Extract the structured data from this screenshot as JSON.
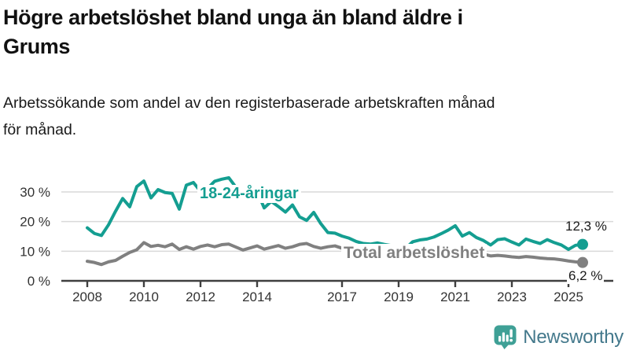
{
  "header": {
    "title_line1": "Högre arbetslöshet bland unga än bland äldre i",
    "title_line2": "Grums",
    "subtitle_line1": "Arbetssökande som andel av den registerbaserade arbetskraften månad",
    "subtitle_line2": "för månad."
  },
  "chart_data": {
    "type": "line",
    "title": "Högre arbetslöshet bland unga än bland äldre i Grums",
    "subtitle": "Arbetssökande som andel av den registerbaserade arbetskraften månad för månad.",
    "unit": "%",
    "grid": "horizontal-only",
    "legend_position": "inline-labels",
    "ylim": [
      0,
      36
    ],
    "xlim": [
      2008,
      2025.5
    ],
    "x_ticks": [
      2008,
      2010,
      2012,
      2014,
      2017,
      2019,
      2021,
      2023,
      2025
    ],
    "y_ticks": [
      {
        "value": 0,
        "label": "0 %"
      },
      {
        "value": 10,
        "label": "10 %"
      },
      {
        "value": 20,
        "label": "20 %"
      },
      {
        "value": 30,
        "label": "30 %"
      }
    ],
    "axis_color": "#3f3f3f",
    "grid_color": "#d9d9d9",
    "tick_text_color": "#333333",
    "x": [
      2008,
      2008.25,
      2008.5,
      2008.75,
      2009,
      2009.25,
      2009.5,
      2009.75,
      2010,
      2010.25,
      2010.5,
      2010.75,
      2011,
      2011.25,
      2011.5,
      2011.75,
      2012,
      2012.25,
      2012.5,
      2012.75,
      2013,
      2013.25,
      2013.5,
      2013.75,
      2014,
      2014.25,
      2014.5,
      2014.75,
      2015,
      2015.25,
      2015.5,
      2015.75,
      2016,
      2016.25,
      2016.5,
      2016.75,
      2017,
      2017.25,
      2017.5,
      2017.75,
      2018,
      2018.25,
      2018.5,
      2018.75,
      2019,
      2019.25,
      2019.5,
      2019.75,
      2020,
      2020.25,
      2020.5,
      2020.75,
      2021,
      2021.25,
      2021.5,
      2021.75,
      2022,
      2022.25,
      2022.5,
      2022.75,
      2023,
      2023.25,
      2023.5,
      2023.75,
      2024,
      2024.25,
      2024.5,
      2024.75,
      2025,
      2025.25,
      2025.5
    ],
    "series": [
      {
        "name": "18-24-åringar",
        "color": "#149E91",
        "end_value": 12.3,
        "end_label": "12,3 %",
        "values": [
          17.9,
          16.0,
          15.3,
          18.9,
          23.5,
          27.8,
          25.0,
          31.8,
          33.7,
          28.0,
          30.8,
          29.8,
          29.5,
          24.2,
          32.3,
          33.2,
          30.2,
          31.2,
          33.6,
          34.3,
          34.8,
          31.6,
          29.4,
          30.8,
          30.2,
          24.6,
          26.8,
          25.1,
          23.2,
          25.6,
          21.6,
          20.4,
          23.1,
          19.3,
          16.3,
          16.1,
          15.1,
          14.4,
          13.3,
          12.6,
          12.4,
          12.8,
          12.3,
          11.9,
          11.2,
          11.0,
          13.2,
          13.8,
          14.1,
          14.8,
          15.9,
          17.1,
          18.6,
          15.1,
          16.3,
          14.6,
          13.6,
          12.1,
          13.9,
          14.2,
          13.1,
          12.1,
          14.1,
          13.3,
          12.6,
          13.9,
          12.9,
          12.1,
          10.6,
          12.0,
          12.3
        ]
      },
      {
        "name": "Total arbetslöshet",
        "color": "#808080",
        "end_value": 6.2,
        "end_label": "6,2 %",
        "values": [
          6.6,
          6.2,
          5.5,
          6.4,
          6.9,
          8.3,
          9.6,
          10.5,
          12.9,
          11.6,
          12.0,
          11.5,
          12.4,
          10.6,
          11.5,
          10.7,
          11.6,
          12.1,
          11.5,
          12.2,
          12.4,
          11.4,
          10.4,
          11.1,
          11.8,
          10.7,
          11.3,
          11.9,
          11.0,
          11.5,
          12.3,
          12.6,
          11.6,
          11.0,
          11.5,
          11.8,
          11.0,
          10.4,
          9.9,
          10.4,
          10.6,
          9.9,
          9.4,
          9.7,
          9.4,
          9.5,
          9.9,
          10.2,
          10.2,
          10.9,
          11.3,
          11.0,
          10.8,
          10.4,
          9.9,
          9.4,
          9.0,
          8.4,
          8.6,
          8.4,
          8.1,
          7.9,
          8.2,
          8.0,
          7.7,
          7.5,
          7.4,
          7.1,
          6.7,
          6.4,
          6.2
        ]
      }
    ]
  },
  "footer": {
    "brand": "Newsworthy",
    "brand_color": "#44798C",
    "icon": "speech-bubble-bar-chart-icon",
    "icon_color": "#3FA096"
  }
}
